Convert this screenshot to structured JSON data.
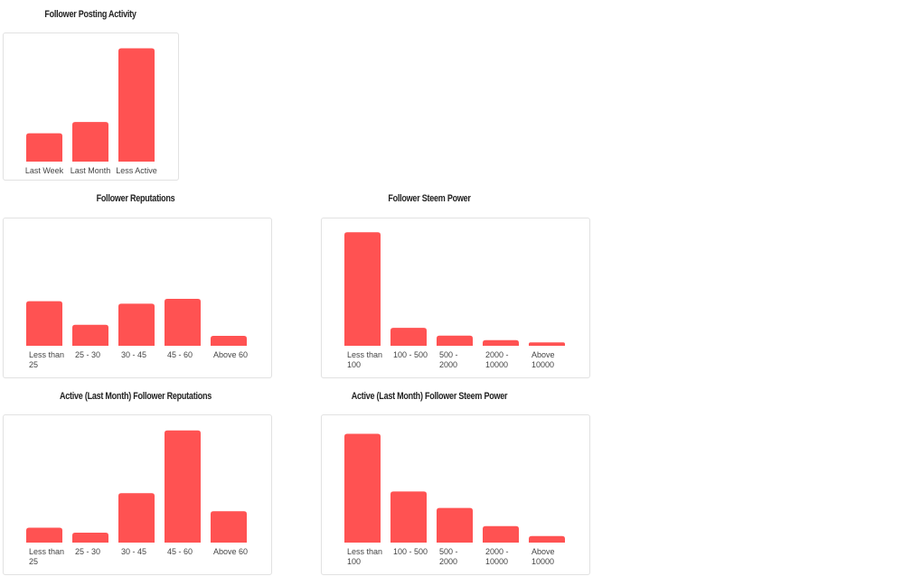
{
  "chart_data": [
    {
      "id": "posting",
      "type": "bar",
      "title": "Follower Posting Activity",
      "categories": [
        "Last Week",
        "Last Month",
        "Less Active"
      ],
      "values": [
        10,
        14,
        40
      ],
      "ylim": [
        0,
        44
      ],
      "grid": false,
      "color": "#ff5252"
    },
    {
      "id": "reputations",
      "type": "bar",
      "title": "Follower Reputations",
      "categories": [
        "Less than 25",
        "25 - 30",
        "30 - 45",
        "45 - 60",
        "Above 60"
      ],
      "values": [
        36,
        17,
        34,
        38,
        8
      ],
      "ylim": [
        0,
        100
      ],
      "grid": false,
      "color": "#ff5252"
    },
    {
      "id": "steem_power",
      "type": "bar",
      "title": "Follower Steem Power",
      "categories": [
        "Less than 100",
        "100 - 500",
        "500 - 2000",
        "2000 - 10000",
        "Above 10000"
      ],
      "values": [
        101,
        16,
        9,
        5,
        3
      ],
      "ylim": [
        0,
        110
      ],
      "grid": false,
      "color": "#ff5252"
    },
    {
      "id": "active_reputations",
      "type": "bar",
      "title": "Active (Last Month) Follower Reputations",
      "categories": [
        "Less than 25",
        "25 - 30",
        "30 - 45",
        "45 - 60",
        "Above 60"
      ],
      "values": [
        9,
        6,
        30,
        68,
        19
      ],
      "ylim": [
        0,
        75
      ],
      "grid": false,
      "color": "#ff5252"
    },
    {
      "id": "active_steem_power",
      "type": "bar",
      "title": "Active (Last Month) Follower Steem Power",
      "categories": [
        "Less than 100",
        "100 - 500",
        "500 - 2000",
        "2000 - 10000",
        "Above 10000"
      ],
      "values": [
        66,
        31,
        21,
        10,
        4
      ],
      "ylim": [
        0,
        75
      ],
      "grid": false,
      "color": "#ff5252"
    }
  ]
}
